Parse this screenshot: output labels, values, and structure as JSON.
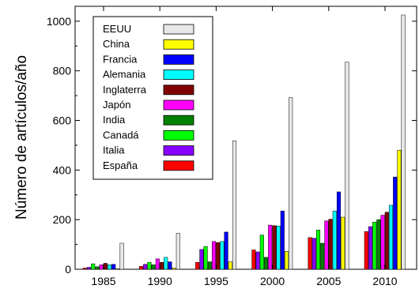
{
  "chart_data": {
    "type": "bar",
    "title": "",
    "xlabel": "",
    "ylabel": "Número de artículos/año",
    "categories": [
      "1985",
      "1990",
      "1995",
      "2000",
      "2005",
      "2010"
    ],
    "ylim": [
      0,
      1060
    ],
    "yticks": [
      0,
      200,
      400,
      600,
      800,
      1000
    ],
    "grid": false,
    "legend_position": "top-left",
    "series": [
      {
        "name": "España",
        "color": "#ff0000",
        "values": [
          5,
          12,
          28,
          78,
          128,
          152
        ]
      },
      {
        "name": "Italia",
        "color": "#8800ff",
        "values": [
          8,
          20,
          80,
          70,
          125,
          172
        ]
      },
      {
        "name": "Canadá",
        "color": "#00ff00",
        "values": [
          22,
          28,
          92,
          138,
          158,
          190
        ]
      },
      {
        "name": "India",
        "color": "#008000",
        "values": [
          10,
          18,
          30,
          48,
          105,
          200
        ]
      },
      {
        "name": "Japón",
        "color": "#ff00ff",
        "values": [
          18,
          42,
          112,
          178,
          195,
          218
        ]
      },
      {
        "name": "Inglaterra",
        "color": "#800000",
        "values": [
          24,
          28,
          108,
          176,
          202,
          230
        ]
      },
      {
        "name": "Alemania",
        "color": "#00ffff",
        "values": [
          18,
          48,
          112,
          174,
          235,
          258
        ]
      },
      {
        "name": "Francia",
        "color": "#0000ff",
        "values": [
          20,
          30,
          150,
          235,
          312,
          372
        ]
      },
      {
        "name": "China",
        "color": "#ffff00",
        "values": [
          2,
          5,
          30,
          72,
          210,
          480
        ]
      },
      {
        "name": "EEUU",
        "color": "#e8e8e8",
        "values": [
          105,
          145,
          518,
          692,
          835,
          1025
        ]
      }
    ],
    "legend_order": [
      "EEUU",
      "China",
      "Francia",
      "Alemania",
      "Inglaterra",
      "Japón",
      "India",
      "Canadá",
      "Italia",
      "España"
    ]
  }
}
